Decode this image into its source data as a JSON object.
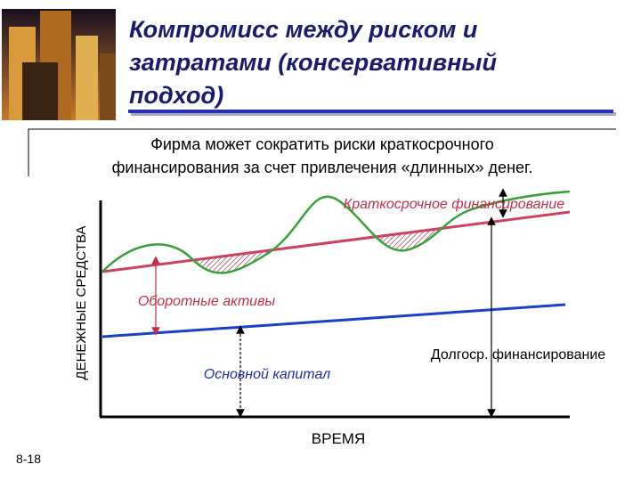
{
  "header": {
    "title": [
      "Компромисс между риском и",
      "затратами (консервативный",
      "подход)"
    ]
  },
  "subtitle": [
    "Фирма может сократить риски краткосрочного",
    "финансирования за счет привлечения «длинных» денег."
  ],
  "diagram": {
    "y_axis_label": "ДЕНЕЖНЫЕ СРЕДСТВА",
    "x_axis_label": "ВРЕМЯ",
    "labels": {
      "short_term": "Краткосрочное финансирование",
      "current_assets": "Оборотные активы",
      "fixed_capital": "Основной капитал",
      "long_term": "Долгоср. финансирование"
    }
  },
  "slide_number": "8-18"
}
